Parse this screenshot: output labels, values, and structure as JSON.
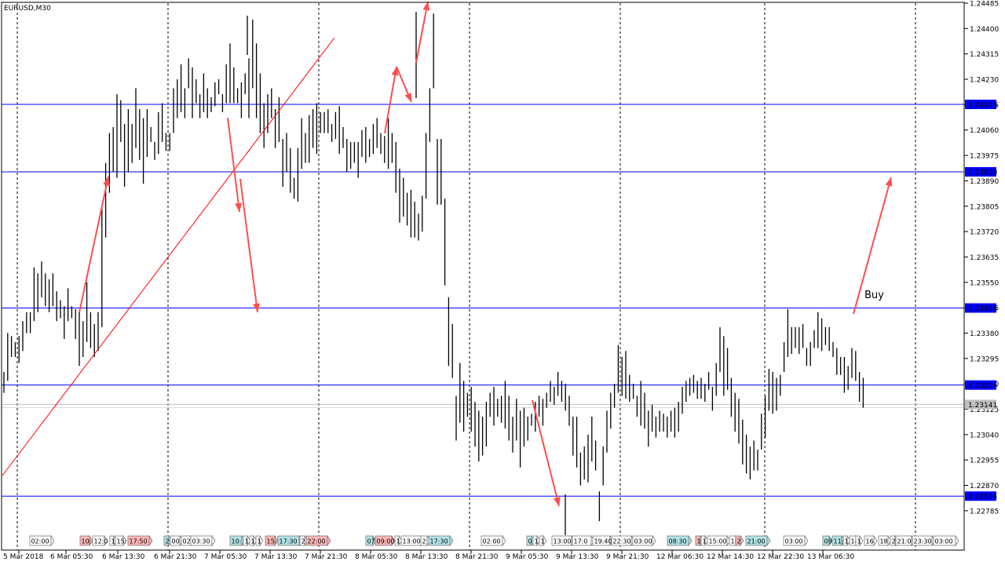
{
  "chart_data": {
    "type": "bar",
    "symbol_title": "EURUSD,M30",
    "y_axis": {
      "range": [
        1.2274,
        1.24485
      ],
      "tick_labels": [
        "1.24485",
        "1.24400",
        "1.24315",
        "1.24230",
        "1.24145",
        "1.24060",
        "1.23975",
        "1.23890",
        "1.23805",
        "1.23720",
        "1.23635",
        "1.23550",
        "1.23465",
        "1.23380",
        "1.23295",
        "1.23210",
        "1.23125",
        "1.23040",
        "1.22955",
        "1.22870",
        "1.22785"
      ]
    },
    "x_axis": {
      "tick_labels": [
        "5 Mar 2018",
        "6 Mar 05:30",
        "6 Mar 13:30",
        "6 Mar 21:30",
        "7 Mar 05:30",
        "7 Mar 13:30",
        "7 Mar 21:30",
        "8 Mar 05:30",
        "8 Mar 13:30",
        "8 Mar 21:30",
        "9 Mar 05:30",
        "9 Mar 13:30",
        "9 Mar 21:30",
        "12 Mar 06:30",
        "12 Mar 14:30",
        "12 Mar 22:30",
        "13 Mar 06:30"
      ]
    },
    "horizontal_levels": [
      {
        "price": 1.24146,
        "label": "1.24146",
        "color": "#0000ff"
      },
      {
        "price": 1.2392,
        "label": "1.23920",
        "color": "#0000ff"
      },
      {
        "price": 1.23464,
        "label": "1.23464",
        "color": "#0000ff"
      },
      {
        "price": 1.23206,
        "label": "1.23206",
        "color": "#0000ff"
      },
      {
        "price": 1.22834,
        "label": "1.22834",
        "color": "#0000ff"
      }
    ],
    "current_price": {
      "price": 1.23141,
      "label": "1.23141",
      "color": "#c0c0c0"
    },
    "annotation": {
      "text": "Buy",
      "color": "#ff3333"
    },
    "trendline_color": "#ff0000",
    "arrow_color": "#ff4d4d",
    "bar_color": "#000000",
    "grid": "vertical-dashed",
    "event_markers": [
      {
        "text": "02:00",
        "color": "#ffffff"
      },
      {
        "text": "10:",
        "color": "#ffb6b6"
      },
      {
        "text": "12:0",
        "color": "#ffffff"
      },
      {
        "text": "1",
        "color": "#ffffff"
      },
      {
        "text": "15:",
        "color": "#ffffff"
      },
      {
        "text": "17:50",
        "color": "#ffb6b6"
      },
      {
        "text": "2",
        "color": "#b3e5e8"
      },
      {
        "text": "00",
        "color": "#ffffff"
      },
      {
        "text": "02",
        "color": "#ffffff"
      },
      {
        "text": "03:30",
        "color": "#ffffff"
      },
      {
        "text": "10:",
        "color": "#b3e5e8"
      },
      {
        "text": "1",
        "color": "#ffffff"
      },
      {
        "text": "1",
        "color": "#ffffff"
      },
      {
        "text": "1",
        "color": "#ffffff"
      },
      {
        "text": "15:",
        "color": "#ffb6b6"
      },
      {
        "text": "17:30",
        "color": "#b3e5e8"
      },
      {
        "text": "2",
        "color": "#ffffff"
      },
      {
        "text": "22:00",
        "color": "#ffb6b6"
      },
      {
        "text": "07",
        "color": "#b3e5e8"
      },
      {
        "text": "09:00",
        "color": "#ffb6b6"
      },
      {
        "text": "1",
        "color": "#ffffff"
      },
      {
        "text": "13:00",
        "color": "#ffffff"
      },
      {
        "text": "2",
        "color": "#ffffff"
      },
      {
        "text": "17:30",
        "color": "#b3e5e8"
      },
      {
        "text": "02:00",
        "color": "#ffffff"
      },
      {
        "text": "0",
        "color": "#b3e5e8"
      },
      {
        "text": "1",
        "color": "#ffffff"
      },
      {
        "text": "1",
        "color": "#ffffff"
      },
      {
        "text": "13:00",
        "color": "#ffffff"
      },
      {
        "text": "17:0",
        "color": "#ffffff"
      },
      {
        "text": "19:40",
        "color": "#ffffff"
      },
      {
        "text": "22:30",
        "color": "#ffffff"
      },
      {
        "text": "03:00",
        "color": "#ffffff"
      },
      {
        "text": "08:30",
        "color": "#b3e5e8"
      },
      {
        "text": "1",
        "color": "#ffb6b6"
      },
      {
        "text": "1",
        "color": "#ffffff"
      },
      {
        "text": "15:00",
        "color": "#ffffff"
      },
      {
        "text": "18",
        "color": "#ffffff"
      },
      {
        "text": "2",
        "color": "#ffb6b6"
      },
      {
        "text": "21:00",
        "color": "#b3e5e8"
      },
      {
        "text": "03:00",
        "color": "#ffffff"
      },
      {
        "text": "09",
        "color": "#b3e5e8"
      },
      {
        "text": "11:",
        "color": "#b3e5e8"
      },
      {
        "text": "1",
        "color": "#ffffff"
      },
      {
        "text": "14",
        "color": "#ffffff"
      },
      {
        "text": "1",
        "color": "#ffffff"
      },
      {
        "text": "16",
        "color": "#ffffff"
      },
      {
        "text": "18",
        "color": "#ffffff"
      },
      {
        "text": "2",
        "color": "#ffffff"
      },
      {
        "text": "21:0",
        "color": "#ffffff"
      },
      {
        "text": "23:30",
        "color": "#ffffff"
      },
      {
        "text": "03:00",
        "color": "#ffffff"
      }
    ],
    "bars_hl": [
      [
        1.2325,
        1.2318
      ],
      [
        1.2338,
        1.2322
      ],
      [
        1.2337,
        1.233
      ],
      [
        1.2335,
        1.233
      ],
      [
        1.2337,
        1.2328
      ],
      [
        1.2342,
        1.2332
      ],
      [
        1.2345,
        1.2338
      ],
      [
        1.2345,
        1.2338
      ],
      [
        1.236,
        1.2342
      ],
      [
        1.2358,
        1.2345
      ],
      [
        1.2362,
        1.235
      ],
      [
        1.2358,
        1.2347
      ],
      [
        1.2356,
        1.2345
      ],
      [
        1.2358,
        1.2347
      ],
      [
        1.2352,
        1.2342
      ],
      [
        1.2349,
        1.2343
      ],
      [
        1.2347,
        1.2336
      ],
      [
        1.2353,
        1.2342
      ],
      [
        1.2347,
        1.2343
      ],
      [
        1.2346,
        1.2336
      ],
      [
        1.2345,
        1.2327
      ],
      [
        1.2342,
        1.233
      ],
      [
        1.2355,
        1.2335
      ],
      [
        1.2345,
        1.2333
      ],
      [
        1.2341,
        1.233
      ],
      [
        1.2345,
        1.2332
      ],
      [
        1.238,
        1.234
      ],
      [
        1.2395,
        1.237
      ],
      [
        1.2405,
        1.2385
      ],
      [
        1.2407,
        1.2392
      ],
      [
        1.2418,
        1.239
      ],
      [
        1.2416,
        1.2402
      ],
      [
        1.2408,
        1.2387
      ],
      [
        1.2413,
        1.2392
      ],
      [
        1.2408,
        1.2395
      ],
      [
        1.242,
        1.24
      ],
      [
        1.2413,
        1.2396
      ],
      [
        1.241,
        1.2388
      ],
      [
        1.2413,
        1.2397
      ],
      [
        1.2407,
        1.2402
      ],
      [
        1.2402,
        1.2396
      ],
      [
        1.2412,
        1.2398
      ],
      [
        1.2415,
        1.2402
      ],
      [
        1.2405,
        1.2399
      ],
      [
        1.2405,
        1.2399
      ],
      [
        1.242,
        1.2405
      ],
      [
        1.2423,
        1.241
      ],
      [
        1.2428,
        1.2412
      ],
      [
        1.242,
        1.241
      ],
      [
        1.243,
        1.242
      ],
      [
        1.2427,
        1.241
      ],
      [
        1.2423,
        1.2415
      ],
      [
        1.2418,
        1.241
      ],
      [
        1.2425,
        1.2412
      ],
      [
        1.242,
        1.241
      ],
      [
        1.2417,
        1.2412
      ],
      [
        1.2422,
        1.2414
      ],
      [
        1.2423,
        1.2418
      ],
      [
        1.2418,
        1.2412
      ],
      [
        1.2428,
        1.2415
      ],
      [
        1.2435,
        1.2415
      ],
      [
        1.2427,
        1.2415
      ],
      [
        1.242,
        1.2415
      ],
      [
        1.2422,
        1.241
      ],
      [
        1.2425,
        1.2418
      ],
      [
        1.243,
        1.241
      ],
      [
        1.2443,
        1.242
      ],
      [
        1.2435,
        1.241
      ],
      [
        1.2425,
        1.2405
      ],
      [
        1.2415,
        1.24
      ],
      [
        1.2418,
        1.2405
      ],
      [
        1.242,
        1.241
      ],
      [
        1.2413,
        1.24
      ],
      [
        1.2417,
        1.2402
      ],
      [
        1.2403,
        1.2387
      ],
      [
        1.2405,
        1.2392
      ],
      [
        1.24,
        1.2385
      ],
      [
        1.239,
        1.2383
      ],
      [
        1.24,
        1.2382
      ],
      [
        1.241,
        1.2393
      ],
      [
        1.2405,
        1.2395
      ],
      [
        1.2411,
        1.2395
      ],
      [
        1.2413,
        1.24
      ],
      [
        1.2415,
        1.2398
      ],
      [
        1.2412,
        1.2405
      ],
      [
        1.2412,
        1.2405
      ],
      [
        1.2413,
        1.2405
      ],
      [
        1.2408,
        1.2402
      ],
      [
        1.2412,
        1.2403
      ],
      [
        1.2414,
        1.2398
      ],
      [
        1.2407,
        1.24
      ],
      [
        1.2403,
        1.2392
      ],
      [
        1.2402,
        1.2393
      ],
      [
        1.2402,
        1.2395
      ],
      [
        1.2402,
        1.239
      ],
      [
        1.2406,
        1.2397
      ],
      [
        1.2407,
        1.2395
      ],
      [
        1.2403,
        1.2397
      ],
      [
        1.2408,
        1.2398
      ],
      [
        1.241,
        1.24
      ],
      [
        1.2405,
        1.2398
      ],
      [
        1.2404,
        1.2395
      ],
      [
        1.241,
        1.2393
      ],
      [
        1.2405,
        1.2395
      ],
      [
        1.2402,
        1.2385
      ],
      [
        1.2393,
        1.2375
      ],
      [
        1.239,
        1.2377
      ],
      [
        1.2385,
        1.2374
      ],
      [
        1.2386,
        1.237
      ],
      [
        1.2382,
        1.237
      ],
      [
        1.2378,
        1.2369
      ],
      [
        1.2384,
        1.2372
      ],
      [
        1.2405,
        1.2383
      ],
      [
        1.242,
        1.2402
      ],
      [
        1.2445,
        1.242
      ],
      [
        1.2403,
        1.2381
      ],
      [
        1.2403,
        1.2381
      ],
      [
        1.2383,
        1.2354
      ],
      [
        1.235,
        1.2327
      ],
      [
        1.2341,
        1.2323
      ],
      [
        1.2317,
        1.2302
      ],
      [
        1.2328,
        1.2308
      ],
      [
        1.2322,
        1.2305
      ],
      [
        1.2318,
        1.231
      ],
      [
        1.232,
        1.2305
      ],
      [
        1.2315,
        1.23
      ],
      [
        1.2312,
        1.2295
      ],
      [
        1.231,
        1.2297
      ],
      [
        1.2315,
        1.23
      ],
      [
        1.2318,
        1.231
      ],
      [
        1.232,
        1.2307
      ],
      [
        1.2316,
        1.231
      ],
      [
        1.2317,
        1.2308
      ],
      [
        1.2322,
        1.2306
      ],
      [
        1.2317,
        1.2302
      ],
      [
        1.231,
        1.2298
      ],
      [
        1.2316,
        1.2302
      ],
      [
        1.2312,
        1.2293
      ],
      [
        1.2313,
        1.23
      ],
      [
        1.231,
        1.2302
      ],
      [
        1.2311,
        1.2307
      ],
      [
        1.2315,
        1.2305
      ],
      [
        1.2317,
        1.231
      ],
      [
        1.2316,
        1.2307
      ],
      [
        1.2318,
        1.2313
      ],
      [
        1.2322,
        1.2315
      ],
      [
        1.232,
        1.2314
      ],
      [
        1.2325,
        1.2317
      ],
      [
        1.2322,
        1.2315
      ],
      [
        1.2321,
        1.2312
      ],
      [
        1.2317,
        1.2307
      ],
      [
        1.231,
        1.2297
      ],
      [
        1.231,
        1.2293
      ],
      [
        1.2298,
        1.2287
      ],
      [
        1.23,
        1.2289
      ],
      [
        1.2304,
        1.2288
      ],
      [
        1.231,
        1.2295
      ],
      [
        1.2302,
        1.2292
      ],
      [
        1.2285,
        1.2275
      ],
      [
        1.23,
        1.2287
      ],
      [
        1.2312,
        1.2298
      ],
      [
        1.2318,
        1.2306
      ],
      [
        1.2321,
        1.2313
      ],
      [
        1.2334,
        1.2318
      ],
      [
        1.233,
        1.2317
      ],
      [
        1.2332,
        1.2316
      ],
      [
        1.2324,
        1.2315
      ],
      [
        1.2321,
        1.2316
      ],
      [
        1.2317,
        1.231
      ],
      [
        1.2322,
        1.2307
      ],
      [
        1.2318,
        1.2306
      ],
      [
        1.2312,
        1.23
      ],
      [
        1.2314,
        1.2305
      ],
      [
        1.231,
        1.2303
      ],
      [
        1.2312,
        1.2305
      ],
      [
        1.2311,
        1.2305
      ],
      [
        1.231,
        1.2303
      ],
      [
        1.2312,
        1.2305
      ],
      [
        1.2313,
        1.2303
      ],
      [
        1.2315,
        1.2305
      ],
      [
        1.232,
        1.2311
      ],
      [
        1.2322,
        1.2315
      ],
      [
        1.2323,
        1.2317
      ],
      [
        1.2324,
        1.2318
      ],
      [
        1.2322,
        1.2316
      ],
      [
        1.2323,
        1.2316
      ],
      [
        1.2321,
        1.2315
      ],
      [
        1.2325,
        1.2319
      ],
      [
        1.232,
        1.2312
      ],
      [
        1.2328,
        1.2317
      ],
      [
        1.234,
        1.2325
      ],
      [
        1.2337,
        1.2317
      ],
      [
        1.2333,
        1.2319
      ],
      [
        1.2323,
        1.231
      ],
      [
        1.2318,
        1.2305
      ],
      [
        1.2316,
        1.2301
      ],
      [
        1.2309,
        1.2294
      ],
      [
        1.2304,
        1.2291
      ],
      [
        1.23,
        1.2289
      ],
      [
        1.2302,
        1.2292
      ],
      [
        1.2299,
        1.2292
      ],
      [
        1.2311,
        1.2299
      ],
      [
        1.2317,
        1.2303
      ],
      [
        1.2326,
        1.2312
      ],
      [
        1.2325,
        1.2311
      ],
      [
        1.2323,
        1.2312
      ],
      [
        1.2324,
        1.2317
      ],
      [
        1.2335,
        1.2325
      ],
      [
        1.2346,
        1.233
      ],
      [
        1.234,
        1.2331
      ],
      [
        1.234,
        1.2333
      ],
      [
        1.234,
        1.2331
      ],
      [
        1.2341,
        1.2333
      ],
      [
        1.2333,
        1.2327
      ],
      [
        1.2335,
        1.2327
      ],
      [
        1.2339,
        1.2333
      ],
      [
        1.2345,
        1.2333
      ],
      [
        1.2343,
        1.2332
      ],
      [
        1.234,
        1.2334
      ],
      [
        1.234,
        1.2332
      ],
      [
        1.2335,
        1.233
      ],
      [
        1.2333,
        1.2324
      ],
      [
        1.233,
        1.2324
      ],
      [
        1.233,
        1.2318
      ],
      [
        1.2327,
        1.2319
      ],
      [
        1.2333,
        1.2323
      ],
      [
        1.2332,
        1.2322
      ],
      [
        1.2325,
        1.2315
      ],
      [
        1.2323,
        1.2313
      ]
    ]
  }
}
